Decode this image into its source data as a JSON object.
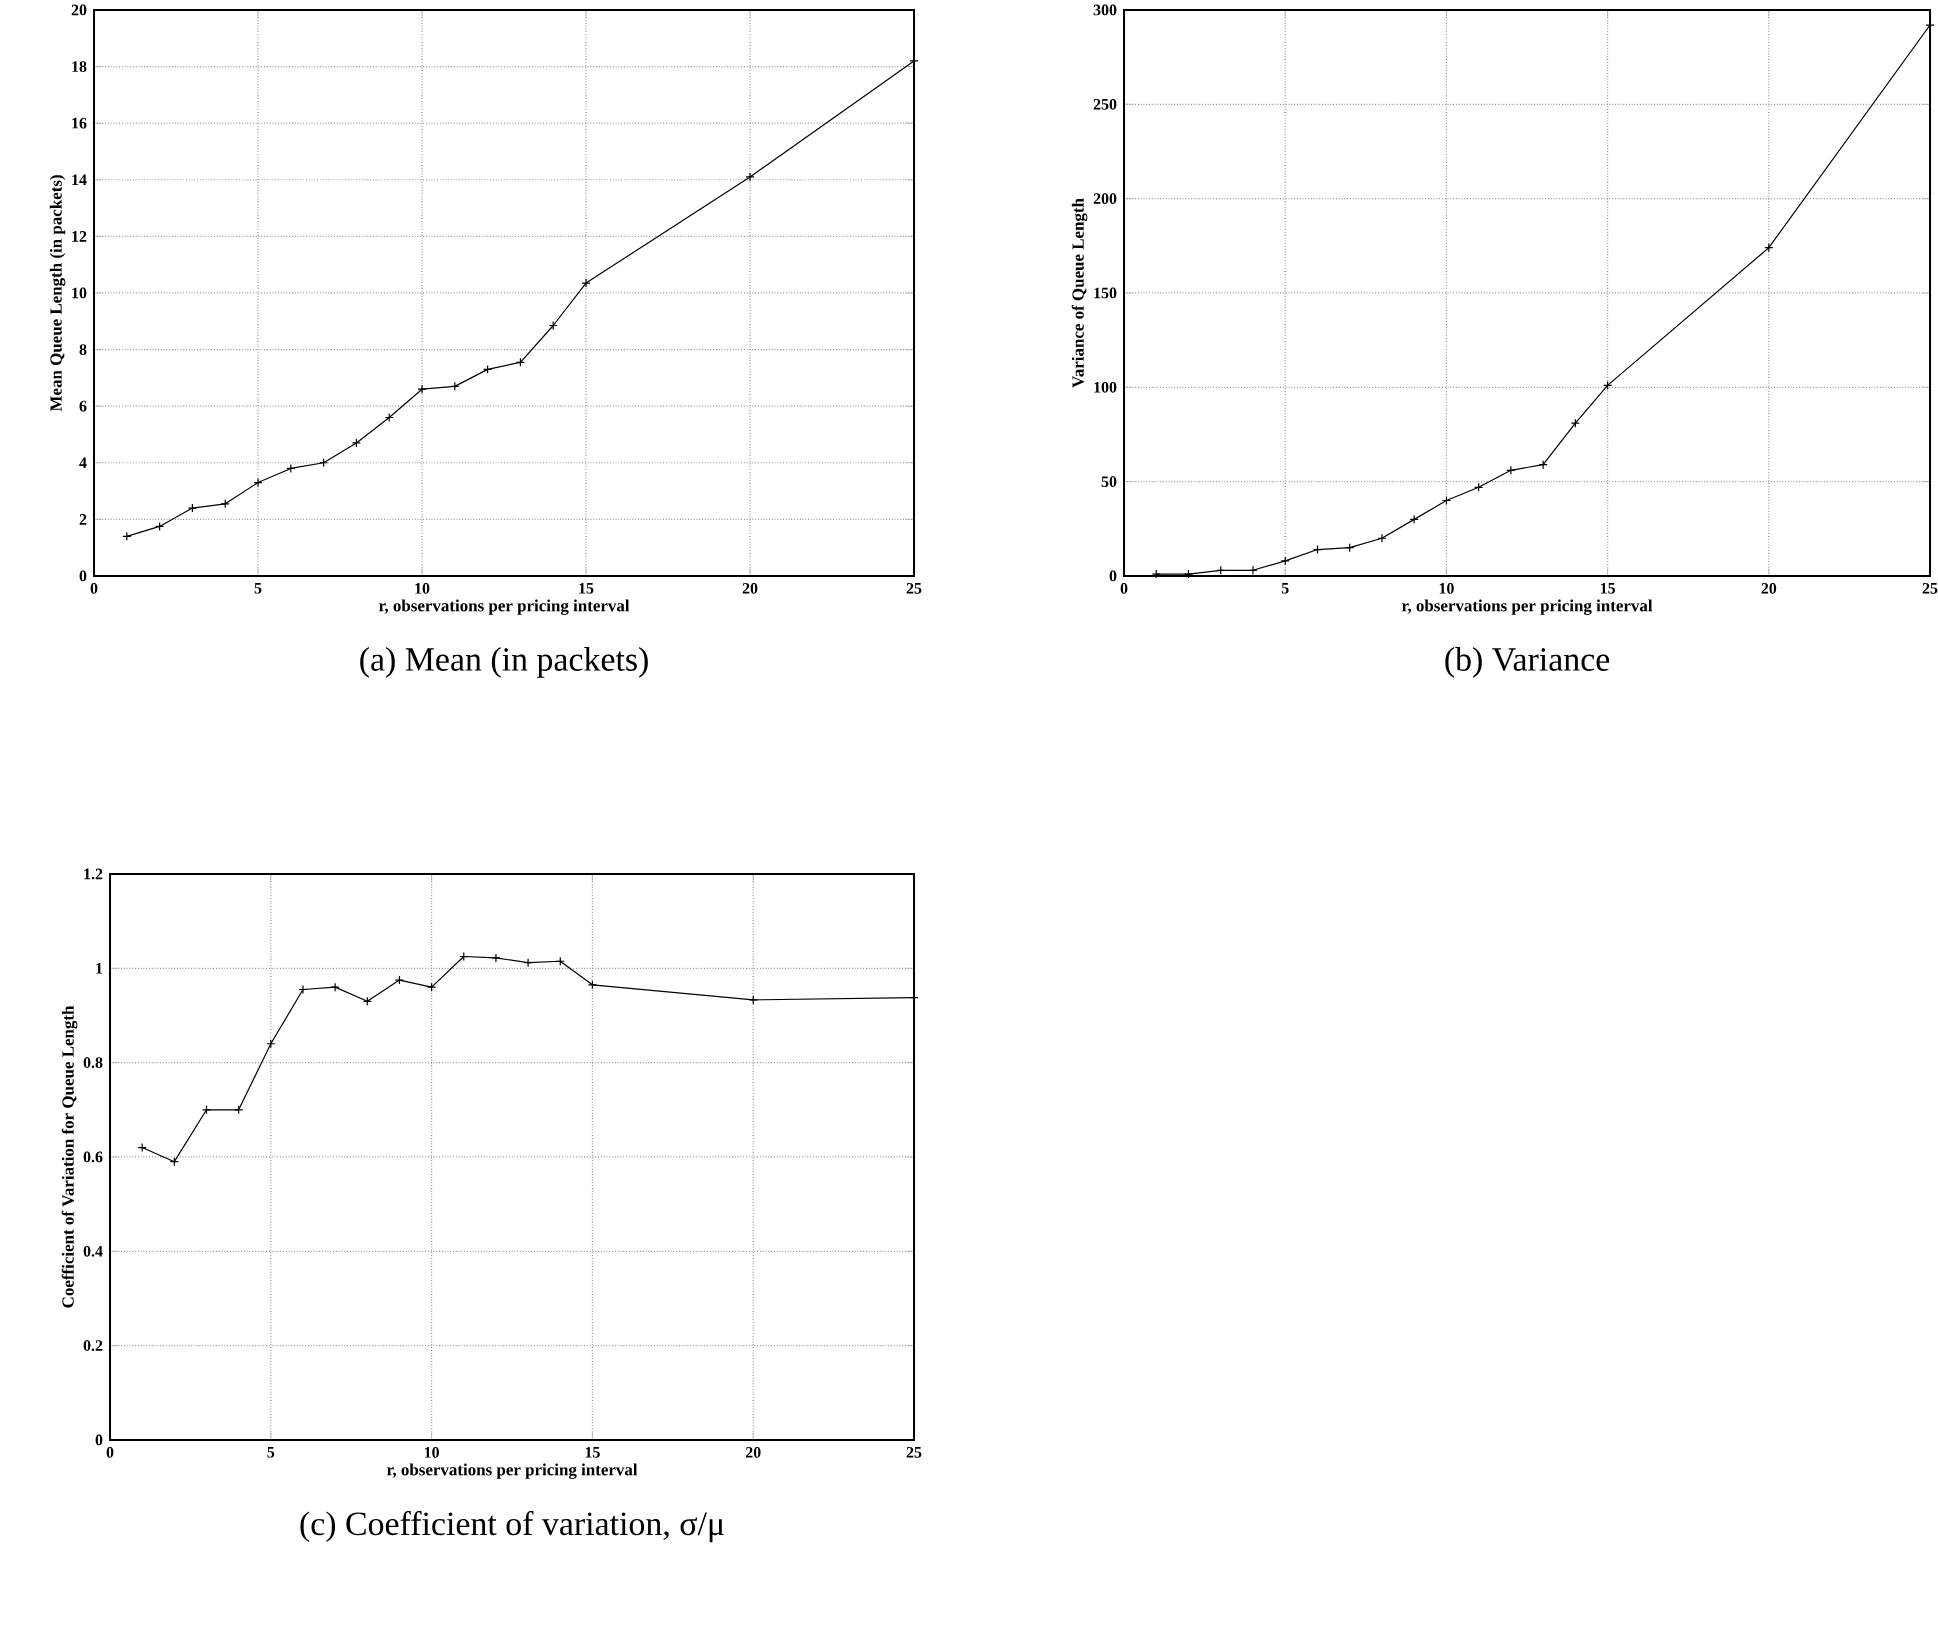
{
  "chart_data": [
    {
      "type": "line",
      "title": "(a) Mean (in packets)",
      "xlabel": "r, observations per pricing interval",
      "ylabel": "Mean Queue Length (in packets)",
      "color": "#000000",
      "marker": "cross",
      "grid": true,
      "xlim": [
        0,
        25
      ],
      "ylim": [
        0,
        20
      ],
      "xticks": [
        0,
        5,
        10,
        15,
        20,
        25
      ],
      "yticks": [
        0,
        2,
        4,
        6,
        8,
        10,
        12,
        14,
        16,
        18,
        20
      ],
      "x": [
        1,
        2,
        3,
        4,
        5,
        6,
        7,
        8,
        9,
        10,
        11,
        12,
        13,
        14,
        15,
        20,
        25
      ],
      "values": [
        1.4,
        1.75,
        2.4,
        2.55,
        3.3,
        3.8,
        4.0,
        4.7,
        5.6,
        6.6,
        6.7,
        7.3,
        7.55,
        8.85,
        10.35,
        14.1,
        18.2
      ]
    },
    {
      "type": "line",
      "title": "(b) Variance",
      "xlabel": "r, observations per pricing interval",
      "ylabel": "Variance of Queue Length",
      "color": "#000000",
      "marker": "cross",
      "grid": true,
      "xlim": [
        0,
        25
      ],
      "ylim": [
        0,
        300
      ],
      "xticks": [
        0,
        5,
        10,
        15,
        20,
        25
      ],
      "yticks": [
        0,
        50,
        100,
        150,
        200,
        250,
        300
      ],
      "x": [
        1,
        2,
        3,
        4,
        5,
        6,
        7,
        8,
        9,
        10,
        11,
        12,
        13,
        14,
        15,
        20,
        25
      ],
      "values": [
        1,
        1,
        3,
        3,
        8,
        14,
        15,
        20,
        30,
        40,
        47,
        56,
        59,
        81,
        101,
        174,
        292
      ]
    },
    {
      "type": "line",
      "title": "(c) Coefficient of variation, σ/μ",
      "xlabel": "r, observations per pricing interval",
      "ylabel": "Coefficient of Variation for Queue Length",
      "color": "#000000",
      "marker": "cross",
      "grid": true,
      "xlim": [
        0,
        25
      ],
      "ylim": [
        0,
        1.2
      ],
      "xticks": [
        0,
        5,
        10,
        15,
        20,
        25
      ],
      "yticks": [
        0,
        0.2,
        0.4,
        0.6,
        0.8,
        1,
        1.2
      ],
      "x": [
        1,
        2,
        3,
        4,
        5,
        6,
        7,
        8,
        9,
        10,
        11,
        12,
        13,
        14,
        15,
        20,
        25
      ],
      "values": [
        0.62,
        0.59,
        0.7,
        0.7,
        0.84,
        0.955,
        0.96,
        0.93,
        0.975,
        0.96,
        1.025,
        1.022,
        1.012,
        1.015,
        0.965,
        0.933,
        0.938
      ]
    }
  ]
}
